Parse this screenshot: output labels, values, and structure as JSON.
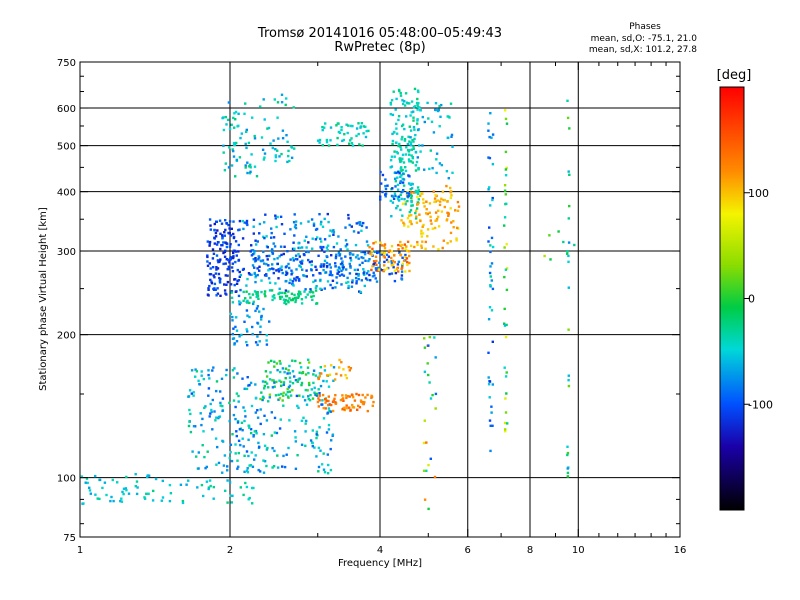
{
  "chart_data": {
    "type": "scatter",
    "title": "Tromsø 20141016 05:48:00–05:49:43",
    "subtitle": "RwPretec (8p)",
    "xlabel": "Frequency [MHz]",
    "ylabel": "Stationary phase Virtual Height [km]",
    "x_scale": "log",
    "y_scale": "log",
    "xlim": [
      1,
      16
    ],
    "ylim": [
      75,
      750
    ],
    "x_ticks": [
      1,
      2,
      4,
      6,
      8,
      10,
      16
    ],
    "x_tick_labels": [
      "1",
      "2",
      "4",
      "6",
      "8",
      "10",
      "16"
    ],
    "y_ticks": [
      75,
      100,
      200,
      300,
      400,
      500,
      600,
      750
    ],
    "y_tick_labels": [
      "75",
      "100",
      "200",
      "300",
      "400",
      "500",
      "600",
      "750"
    ],
    "grid_x": [
      2,
      4,
      6,
      8,
      10
    ],
    "grid_y": [
      100,
      200,
      300,
      400,
      500,
      600
    ],
    "grid": true,
    "colorbar": {
      "unit": "[deg]",
      "range": [
        -200,
        200
      ],
      "tick_values": [
        100,
        0,
        -100
      ],
      "tick_labels": [
        "100",
        "0",
        "-100"
      ]
    },
    "stats": {
      "heading": "Phases",
      "line1": "mean, sd,O: -75.1, 21.0",
      "line2": "mean, sd,X: 101.2, 27.8"
    },
    "clusters": [
      {
        "f0": 1.0,
        "f1": 1.4,
        "h0": 88,
        "h1": 102,
        "phase": [
          -70,
          -30
        ],
        "n": 45,
        "kind": "uniform"
      },
      {
        "f0": 1.4,
        "f1": 2.3,
        "h0": 88,
        "h1": 100,
        "phase": [
          -70,
          -20
        ],
        "n": 40,
        "kind": "uniform"
      },
      {
        "f0": 1.65,
        "f1": 3.25,
        "h0": 102,
        "h1": 172,
        "phase": [
          -100,
          -20
        ],
        "n": 320,
        "kind": "uniform"
      },
      {
        "f0": 2.3,
        "f1": 3.0,
        "h0": 145,
        "h1": 178,
        "phase": [
          -40,
          30
        ],
        "n": 60,
        "kind": "uniform"
      },
      {
        "f0": 3.0,
        "f1": 3.9,
        "h0": 138,
        "h1": 150,
        "phase": [
          110,
          150
        ],
        "n": 70,
        "kind": "uniform"
      },
      {
        "f0": 3.0,
        "f1": 3.5,
        "h0": 160,
        "h1": 178,
        "phase": [
          90,
          130
        ],
        "n": 20,
        "kind": "uniform"
      },
      {
        "f0": 1.8,
        "f1": 2.1,
        "h0": 240,
        "h1": 350,
        "phase": [
          -130,
          -90
        ],
        "n": 160,
        "kind": "uniform"
      },
      {
        "f0": 2.1,
        "f1": 3.8,
        "h0": 245,
        "h1": 360,
        "phase": [
          -120,
          -40
        ],
        "n": 260,
        "kind": "uniform"
      },
      {
        "f0": 2.2,
        "f1": 4.5,
        "h0": 258,
        "h1": 300,
        "phase": [
          -120,
          -70
        ],
        "n": 180,
        "kind": "uniform"
      },
      {
        "f0": 2.0,
        "f1": 3.0,
        "h0": 232,
        "h1": 248,
        "phase": [
          -40,
          -10
        ],
        "n": 80,
        "kind": "uniform"
      },
      {
        "f0": 2.0,
        "f1": 2.4,
        "h0": 190,
        "h1": 235,
        "phase": [
          -100,
          -50
        ],
        "n": 50,
        "kind": "uniform"
      },
      {
        "f0": 1.9,
        "f1": 2.3,
        "h0": 430,
        "h1": 620,
        "phase": [
          -80,
          -20
        ],
        "n": 60,
        "kind": "uniform"
      },
      {
        "f0": 2.3,
        "f1": 2.7,
        "h0": 460,
        "h1": 640,
        "phase": [
          -80,
          -20
        ],
        "n": 40,
        "kind": "uniform"
      },
      {
        "f0": 3.0,
        "f1": 3.8,
        "h0": 500,
        "h1": 560,
        "phase": [
          -60,
          -20
        ],
        "n": 50,
        "kind": "uniform"
      },
      {
        "f0": 3.8,
        "f1": 4.6,
        "h0": 270,
        "h1": 315,
        "phase": [
          80,
          160
        ],
        "n": 70,
        "kind": "uniform"
      },
      {
        "f0": 4.4,
        "f1": 5.8,
        "h0": 300,
        "h1": 400,
        "phase": [
          80,
          130
        ],
        "n": 90,
        "kind": "uniform"
      },
      {
        "f0": 4.2,
        "f1": 4.8,
        "h0": 350,
        "h1": 660,
        "phase": [
          -60,
          -20
        ],
        "n": 180,
        "kind": "uniform"
      },
      {
        "f0": 4.0,
        "f1": 4.6,
        "h0": 380,
        "h1": 440,
        "phase": [
          -110,
          -70
        ],
        "n": 40,
        "kind": "uniform"
      },
      {
        "f0": 4.6,
        "f1": 5.6,
        "h0": 420,
        "h1": 620,
        "phase": [
          -80,
          -30
        ],
        "n": 50,
        "kind": "uniform"
      },
      {
        "f0": 4.7,
        "f1": 5.6,
        "h0": 340,
        "h1": 420,
        "phase": [
          100,
          130
        ],
        "n": 30,
        "kind": "uniform"
      },
      {
        "f0": 4.9,
        "f1": 5.2,
        "h0": 82,
        "h1": 200,
        "phase": [
          -100,
          150
        ],
        "n": 25,
        "kind": "uniform"
      },
      {
        "f0": 6.6,
        "f1": 6.75,
        "h0": 110,
        "h1": 600,
        "phase": [
          -120,
          -30
        ],
        "n": 45,
        "kind": "column"
      },
      {
        "f0": 7.1,
        "f1": 7.2,
        "h0": 120,
        "h1": 600,
        "phase": [
          -60,
          80
        ],
        "n": 35,
        "kind": "column"
      },
      {
        "f0": 9.5,
        "f1": 9.6,
        "h0": 100,
        "h1": 650,
        "phase": [
          -80,
          30
        ],
        "n": 25,
        "kind": "column"
      },
      {
        "f0": 8.5,
        "f1": 10.5,
        "h0": 280,
        "h1": 330,
        "phase": [
          -60,
          90
        ],
        "n": 6,
        "kind": "uniform"
      }
    ]
  }
}
